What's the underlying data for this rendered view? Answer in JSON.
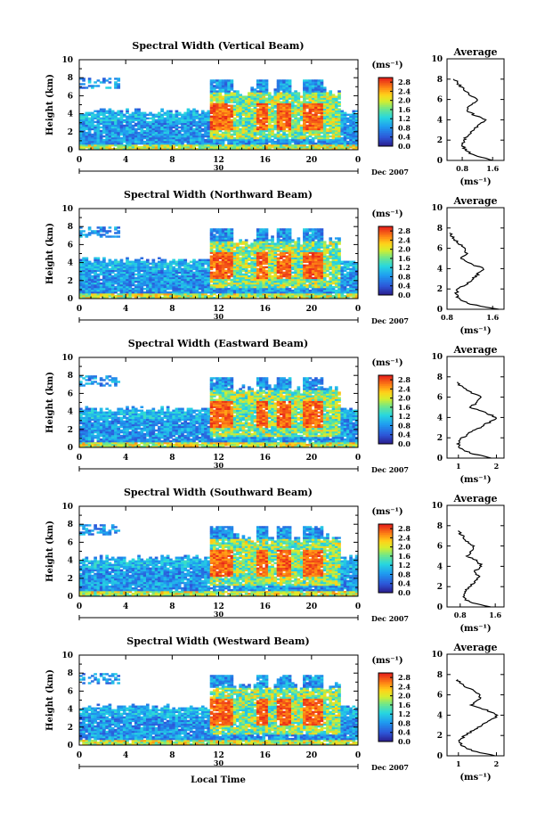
{
  "figure": {
    "xlabel": "Local Time",
    "date_label": "Dec 2007",
    "day_label": "30",
    "colorbar_unit": "(ms⁻¹)",
    "avg_title": "Average",
    "avg_xlabel": "(ms⁻¹)",
    "height_label": "Height (km)"
  },
  "chart_data": [
    {
      "type": "heatmap",
      "title": "Spectral Width (Vertical Beam)",
      "ylabel": "Height (km)",
      "xlabel": "Local Time",
      "x_ticks": [
        "0",
        "4",
        "8",
        "12",
        "16",
        "20",
        "0"
      ],
      "y_ticks": [
        "0",
        "2",
        "4",
        "6",
        "8",
        "10"
      ],
      "xlim": [
        0,
        24
      ],
      "ylim": [
        0,
        10
      ],
      "colorbar": {
        "unit": "(ms⁻¹)",
        "ticks": [
          "0.0",
          "0.4",
          "0.8",
          "1.2",
          "1.6",
          "2.0",
          "2.4",
          "2.8"
        ],
        "range": [
          0,
          3.0
        ]
      },
      "average": {
        "title": "Average",
        "xlabel": "(ms⁻¹)",
        "x_ticks": [
          "0.8",
          "1.6"
        ],
        "xlim": [
          0.4,
          1.9
        ],
        "heights": [
          0,
          0.5,
          1,
          1.5,
          2,
          2.5,
          3,
          3.5,
          4,
          4.5,
          5,
          5.5,
          6,
          6.5,
          7,
          7.5,
          8
        ],
        "values": [
          1.6,
          1.1,
          0.9,
          0.8,
          0.85,
          0.95,
          1.1,
          1.25,
          1.4,
          1.1,
          0.9,
          1.05,
          1.2,
          1.0,
          0.85,
          0.7,
          0.6
        ]
      }
    },
    {
      "type": "heatmap",
      "title": "Spectral Width (Northward Beam)",
      "ylabel": "Height (km)",
      "xlabel": "Local Time",
      "x_ticks": [
        "0",
        "4",
        "8",
        "12",
        "16",
        "20",
        "0"
      ],
      "y_ticks": [
        "0",
        "2",
        "4",
        "6",
        "8",
        "10"
      ],
      "xlim": [
        0,
        24
      ],
      "ylim": [
        0,
        10
      ],
      "colorbar": {
        "unit": "(ms⁻¹)",
        "ticks": [
          "0.0",
          "0.4",
          "0.8",
          "1.2",
          "1.6",
          "2.0",
          "2.4",
          "2.8"
        ],
        "range": [
          0,
          3.0
        ]
      },
      "average": {
        "title": "Average",
        "xlabel": "(ms⁻¹)",
        "x_ticks": [
          "0.8",
          "1.6"
        ],
        "xlim": [
          0.8,
          1.8
        ],
        "heights": [
          0,
          0.5,
          1,
          1.5,
          2,
          2.5,
          3,
          3.5,
          4,
          4.5,
          5,
          5.5,
          6,
          6.5,
          7,
          7.5
        ],
        "values": [
          1.7,
          1.2,
          1.0,
          0.95,
          1.0,
          1.15,
          1.25,
          1.35,
          1.45,
          1.2,
          1.05,
          1.15,
          1.1,
          1.0,
          0.9,
          0.85
        ]
      }
    },
    {
      "type": "heatmap",
      "title": "Spectral Width (Eastward Beam)",
      "ylabel": "Height (km)",
      "xlabel": "Local Time",
      "x_ticks": [
        "0",
        "4",
        "8",
        "12",
        "16",
        "20",
        "0"
      ],
      "y_ticks": [
        "0",
        "2",
        "4",
        "6",
        "8",
        "10"
      ],
      "xlim": [
        0,
        24
      ],
      "ylim": [
        0,
        10
      ],
      "colorbar": {
        "unit": "(ms⁻¹)",
        "ticks": [
          "0.0",
          "0.4",
          "0.8",
          "1.2",
          "1.6",
          "2.0",
          "2.4",
          "2.8"
        ],
        "range": [
          0,
          3.0
        ]
      },
      "average": {
        "title": "Average",
        "xlabel": "(ms⁻¹)",
        "x_ticks": [
          "1",
          "2"
        ],
        "xlim": [
          0.7,
          2.2
        ],
        "heights": [
          0,
          0.5,
          1,
          1.5,
          2,
          2.5,
          3,
          3.5,
          4,
          4.5,
          5,
          5.5,
          6,
          6.5,
          7,
          7.5
        ],
        "values": [
          1.9,
          1.3,
          1.05,
          1.0,
          1.1,
          1.3,
          1.55,
          1.8,
          2.0,
          1.7,
          1.3,
          1.5,
          1.6,
          1.3,
          1.1,
          0.95
        ]
      }
    },
    {
      "type": "heatmap",
      "title": "Spectral Width (Southward Beam)",
      "ylabel": "Height (km)",
      "xlabel": "Local Time",
      "x_ticks": [
        "0",
        "4",
        "8",
        "12",
        "16",
        "20",
        "0"
      ],
      "y_ticks": [
        "0",
        "2",
        "4",
        "6",
        "8",
        "10"
      ],
      "xlim": [
        0,
        24
      ],
      "ylim": [
        0,
        10
      ],
      "colorbar": {
        "unit": "(ms⁻¹)",
        "ticks": [
          "0.0",
          "0.4",
          "0.8",
          "1.2",
          "1.6",
          "2.0",
          "2.4",
          "2.8"
        ],
        "range": [
          0,
          3.0
        ]
      },
      "average": {
        "title": "Average",
        "xlabel": "(ms⁻¹)",
        "x_ticks": [
          "0.8",
          "1.6"
        ],
        "xlim": [
          0.5,
          1.8
        ],
        "heights": [
          0,
          0.5,
          1,
          1.5,
          2,
          2.5,
          3,
          3.5,
          4,
          4.5,
          5,
          5.5,
          6,
          6.5,
          7,
          7.5
        ],
        "values": [
          1.5,
          1.0,
          0.85,
          0.9,
          1.0,
          1.15,
          1.25,
          1.1,
          1.3,
          1.2,
          0.95,
          1.05,
          1.1,
          0.95,
          0.85,
          0.75
        ]
      }
    },
    {
      "type": "heatmap",
      "title": "Spectral Width (Westward Beam)",
      "ylabel": "Height (km)",
      "xlabel": "Local Time",
      "x_ticks": [
        "0",
        "4",
        "8",
        "12",
        "16",
        "20",
        "0"
      ],
      "y_ticks": [
        "0",
        "2",
        "4",
        "6",
        "8",
        "10"
      ],
      "xlim": [
        0,
        24
      ],
      "ylim": [
        0,
        10
      ],
      "colorbar": {
        "unit": "(ms⁻¹)",
        "ticks": [
          "0.0",
          "0.4",
          "0.8",
          "1.2",
          "1.6",
          "2.0",
          "2.4",
          "2.8"
        ],
        "range": [
          0,
          3.0
        ]
      },
      "average": {
        "title": "Average",
        "xlabel": "(ms⁻¹)",
        "x_ticks": [
          "1",
          "2"
        ],
        "xlim": [
          0.7,
          2.2
        ],
        "heights": [
          0,
          0.5,
          1,
          1.5,
          2,
          2.5,
          3,
          3.5,
          4,
          4.5,
          5,
          5.5,
          6,
          6.5,
          7,
          7.5
        ],
        "values": [
          2.0,
          1.35,
          1.1,
          1.05,
          1.15,
          1.4,
          1.6,
          1.85,
          2.05,
          1.75,
          1.35,
          1.55,
          1.6,
          1.35,
          1.1,
          0.95
        ]
      }
    }
  ]
}
